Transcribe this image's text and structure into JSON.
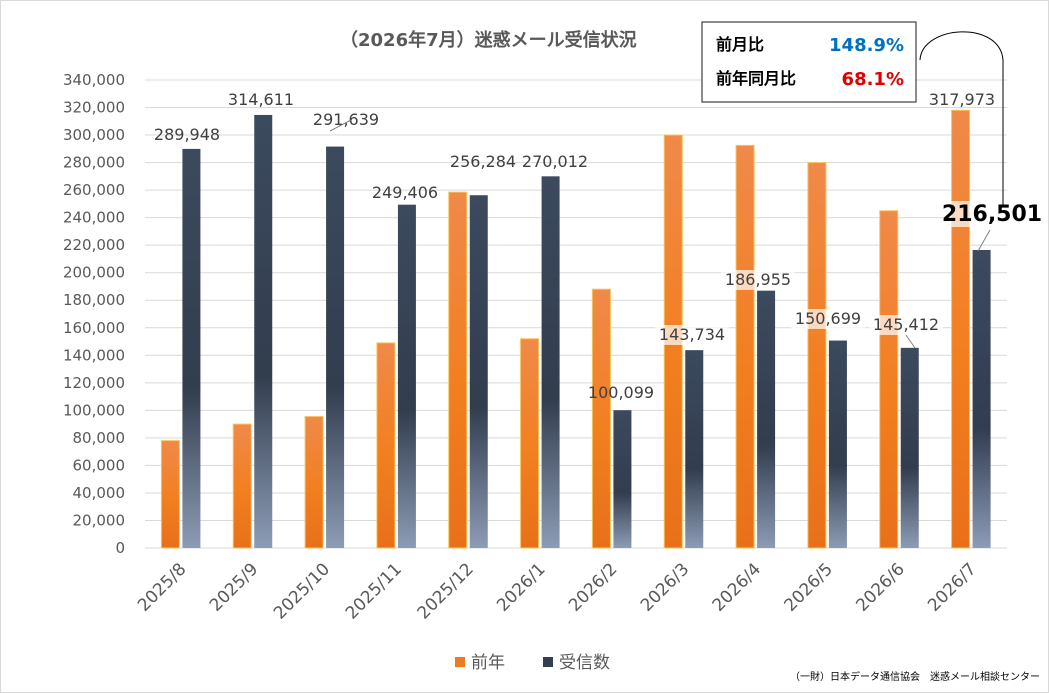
{
  "chart_data": {
    "type": "bar",
    "title": "（2026年7月）迷惑メール受信状況",
    "categories": [
      "2025/8",
      "2025/9",
      "2025/10",
      "2025/11",
      "2025/12",
      "2026/1",
      "2026/2",
      "2026/3",
      "2026/4",
      "2026/5",
      "2026/6",
      "2026/7"
    ],
    "series": [
      {
        "name": "前年",
        "color": "#ee7a22",
        "values": [
          78000,
          90000,
          95500,
          149000,
          258500,
          152000,
          188000,
          300000,
          292500,
          280000,
          245000,
          317973
        ]
      },
      {
        "name": "受信数",
        "color": "#333f50",
        "values": [
          289948,
          314611,
          291639,
          249406,
          256284,
          270012,
          100099,
          143734,
          186955,
          150699,
          145412,
          216501
        ]
      }
    ],
    "data_labels": [
      "289,948",
      "314,611",
      "291,639",
      "249,406",
      "256,284",
      "270,012",
      "100,099",
      "143,734",
      "186,955",
      "150,699",
      "145,412",
      "216,501"
    ],
    "prev_year_label": "317,973",
    "ylim": [
      0,
      340000
    ],
    "yticks": [
      0,
      20000,
      40000,
      60000,
      80000,
      100000,
      120000,
      140000,
      160000,
      180000,
      200000,
      220000,
      240000,
      260000,
      280000,
      300000,
      320000,
      340000
    ],
    "ytick_labels": [
      "0",
      "20,000",
      "40,000",
      "60,000",
      "80,000",
      "100,000",
      "120,000",
      "140,000",
      "160,000",
      "180,000",
      "200,000",
      "220,000",
      "240,000",
      "260,000",
      "280,000",
      "300,000",
      "320,000",
      "340,000"
    ],
    "grid": true,
    "legend_position": "bottom"
  },
  "summary_box": {
    "mom_label": "前月比",
    "mom_value": "148.9%",
    "yoy_label": "前年同月比",
    "yoy_value": "68.1%"
  },
  "source": "（一財）日本データ通信協会　迷惑メール相談センター"
}
